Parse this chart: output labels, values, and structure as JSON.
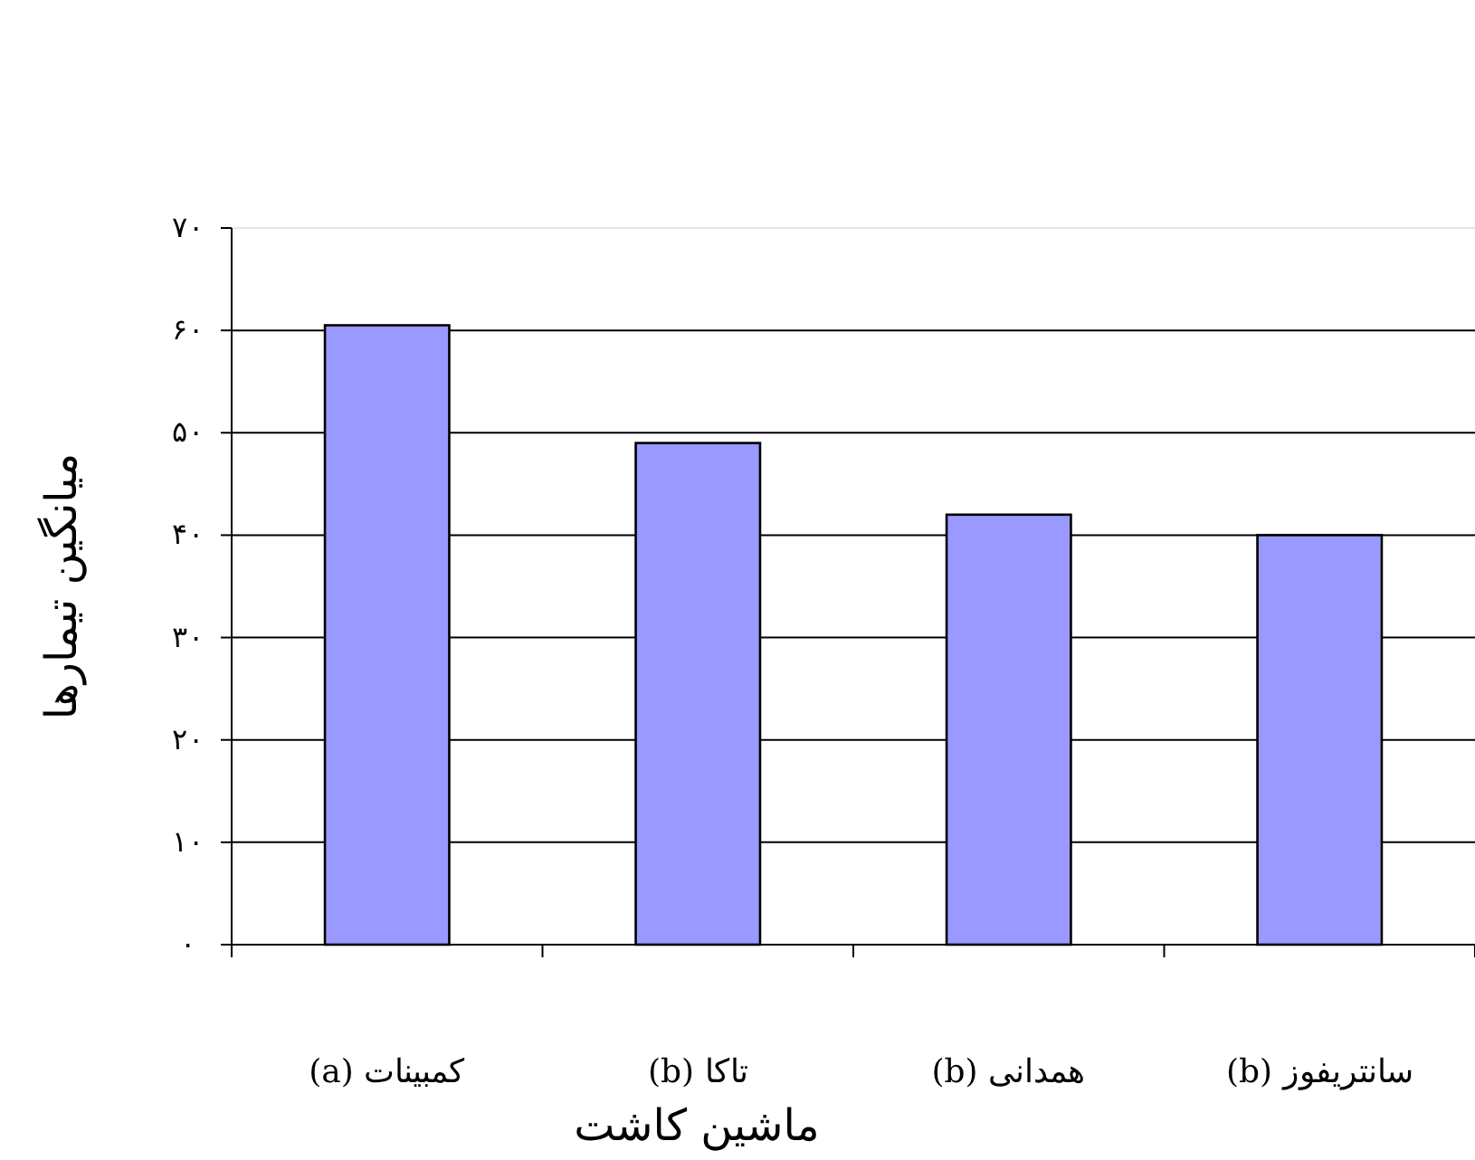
{
  "chart_data": {
    "type": "bar",
    "xlabel": "ماشین کاشت",
    "ylabel": "میانگین تیمارها",
    "categories": [
      "کمبینات (a)",
      "تاکا (b)",
      "همدانی (b)",
      "سانتریفوز (b)"
    ],
    "values": [
      60.5,
      49,
      42,
      40
    ],
    "color": "#9999ff",
    "ylim": [
      0,
      70
    ],
    "yticks": [
      {
        "value": 0,
        "label": "۰"
      },
      {
        "value": 10,
        "label": "۱۰"
      },
      {
        "value": 20,
        "label": "۲۰"
      },
      {
        "value": 30,
        "label": "۳۰"
      },
      {
        "value": 40,
        "label": "۴۰"
      },
      {
        "value": 50,
        "label": "۵۰"
      },
      {
        "value": 60,
        "label": "۶۰"
      },
      {
        "value": 70,
        "label": "۷۰"
      }
    ],
    "grid": "y"
  }
}
